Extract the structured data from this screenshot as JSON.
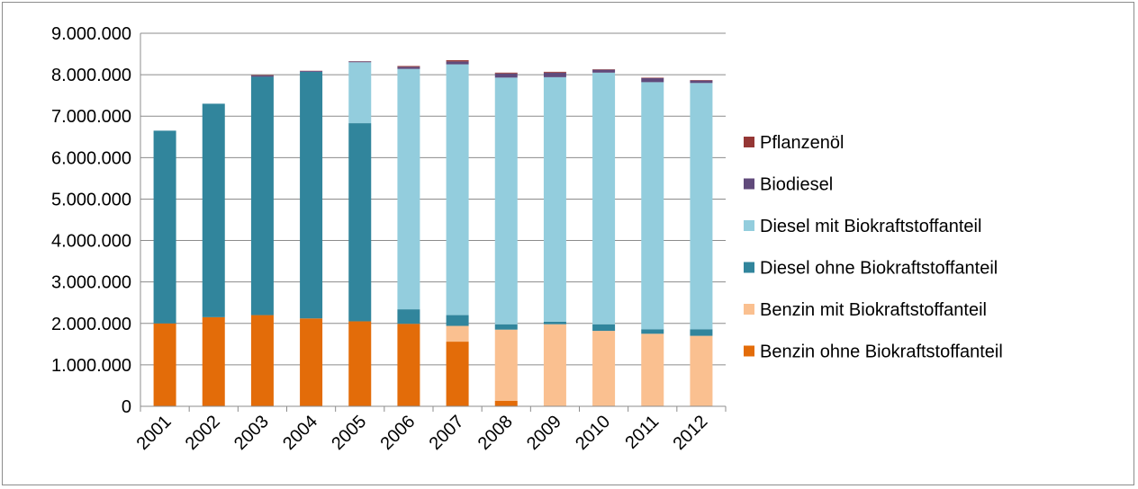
{
  "chart_data": {
    "type": "bar",
    "stacked": true,
    "title": "",
    "xlabel": "",
    "ylabel": "",
    "ylim": [
      0,
      9000000
    ],
    "yticks": [
      0,
      1000000,
      2000000,
      3000000,
      4000000,
      5000000,
      6000000,
      7000000,
      8000000,
      9000000
    ],
    "ytick_labels": [
      "0",
      "1.000.000",
      "2.000.000",
      "3.000.000",
      "4.000.000",
      "5.000.000",
      "6.000.000",
      "7.000.000",
      "8.000.000",
      "9.000.000"
    ],
    "grid": true,
    "legend_position": "right",
    "categories": [
      "2001",
      "2002",
      "2003",
      "2004",
      "2005",
      "2006",
      "2007",
      "2008",
      "2009",
      "2010",
      "2011",
      "2012"
    ],
    "series": [
      {
        "name": "Benzin ohne Biokraftstoffanteil",
        "color": "#e36c09",
        "values": [
          2000000,
          2150000,
          2200000,
          2120000,
          2050000,
          1990000,
          1560000,
          130000,
          0,
          0,
          0,
          0
        ]
      },
      {
        "name": "Benzin mit Biokraftstoffanteil",
        "color": "#fac090",
        "values": [
          0,
          0,
          0,
          0,
          0,
          0,
          380000,
          1720000,
          1980000,
          1820000,
          1750000,
          1700000
        ]
      },
      {
        "name": "Diesel ohne Biokraftstoffanteil",
        "color": "#31859c",
        "values": [
          4650000,
          5150000,
          5750000,
          5950000,
          4780000,
          350000,
          260000,
          130000,
          60000,
          160000,
          110000,
          160000
        ]
      },
      {
        "name": "Diesel mit Biokraftstoffanteil",
        "color": "#93cddd",
        "values": [
          0,
          0,
          0,
          0,
          1470000,
          5800000,
          6050000,
          5950000,
          5900000,
          6070000,
          5960000,
          5940000
        ]
      },
      {
        "name": "Biodiesel",
        "color": "#604a7b",
        "values": [
          0,
          0,
          30000,
          20000,
          20000,
          50000,
          70000,
          100000,
          110000,
          70000,
          100000,
          60000
        ]
      },
      {
        "name": "Pflanzenöl",
        "color": "#953735",
        "values": [
          0,
          0,
          10000,
          5000,
          5000,
          20000,
          30000,
          20000,
          20000,
          10000,
          10000,
          10000
        ]
      }
    ]
  }
}
